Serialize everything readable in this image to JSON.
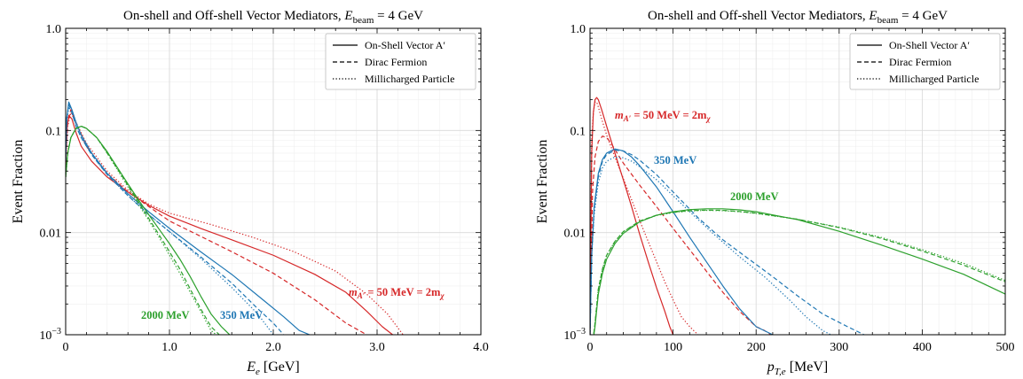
{
  "colors": {
    "red": "#d62728",
    "blue": "#1f77b4",
    "green": "#2ca02c"
  },
  "chart_data": [
    {
      "type": "line",
      "title": "On-shell and Off-shell Vector Mediators, E_beam = 4 GeV",
      "title_main": "On-shell and Off-shell Vector Mediators,",
      "title_eq": "= 4 GeV",
      "xlabel_sym": "E",
      "xlabel_sub": "e",
      "xlabel_unit": "[GeV]",
      "ylabel": "Event Fraction",
      "xlim": [
        0,
        4.0
      ],
      "ylim": [
        0.001,
        1.0
      ],
      "yscale": "log",
      "grid": true,
      "legend_position": "top-right",
      "xticks": [
        "0",
        "1.0",
        "2.0",
        "3.0",
        "4.0"
      ],
      "yticks": [
        "1.0",
        "0.1",
        "0.01",
        "10"
      ],
      "legend": [
        {
          "text": "On-Shell Vector A′",
          "dash": "solid"
        },
        {
          "text": "Dirac Fermion",
          "dash": "dashed"
        },
        {
          "text": "Millicharged Particle",
          "dash": "dotted"
        }
      ],
      "annotations": [
        {
          "text": "m",
          "sub": "A′",
          "rest": " = 50 MeV = 2m",
          "sub2": "χ",
          "color": "red"
        },
        {
          "text": "350 MeV",
          "color": "blue"
        },
        {
          "text": "2000 MeV",
          "color": "green"
        }
      ],
      "series": [
        {
          "color": "red",
          "dash": "solid",
          "x": [
            0.0,
            0.01,
            0.03,
            0.06,
            0.1,
            0.15,
            0.25,
            0.4,
            0.6,
            0.8,
            1.0,
            1.3,
            1.6,
            2.0,
            2.4,
            2.7,
            2.9,
            3.05,
            3.15
          ],
          "y": [
            0.04,
            0.1,
            0.14,
            0.13,
            0.095,
            0.07,
            0.05,
            0.035,
            0.025,
            0.0185,
            0.0145,
            0.011,
            0.0085,
            0.006,
            0.0039,
            0.0026,
            0.0017,
            0.0012,
            0.001
          ]
        },
        {
          "color": "red",
          "dash": "dashed",
          "x": [
            0.0,
            0.02,
            0.05,
            0.1,
            0.2,
            0.4,
            0.6,
            0.8,
            1.0,
            1.3,
            1.6,
            2.0,
            2.4,
            2.7,
            2.9
          ],
          "y": [
            0.05,
            0.12,
            0.16,
            0.12,
            0.07,
            0.038,
            0.025,
            0.018,
            0.013,
            0.0092,
            0.0065,
            0.004,
            0.0022,
            0.0013,
            0.001
          ]
        },
        {
          "color": "red",
          "dash": "dotted",
          "x": [
            0.0,
            0.02,
            0.05,
            0.1,
            0.2,
            0.4,
            0.6,
            0.8,
            1.0,
            1.4,
            1.8,
            2.2,
            2.6,
            2.9,
            3.1,
            3.25
          ],
          "y": [
            0.05,
            0.11,
            0.15,
            0.12,
            0.075,
            0.04,
            0.026,
            0.019,
            0.0155,
            0.012,
            0.009,
            0.0065,
            0.0042,
            0.0025,
            0.0016,
            0.001
          ]
        },
        {
          "color": "blue",
          "dash": "solid",
          "x": [
            0.0,
            0.01,
            0.03,
            0.06,
            0.1,
            0.15,
            0.25,
            0.4,
            0.6,
            0.8,
            1.0,
            1.3,
            1.6,
            1.9,
            2.1,
            2.25,
            2.35
          ],
          "y": [
            0.05,
            0.13,
            0.19,
            0.16,
            0.12,
            0.09,
            0.06,
            0.038,
            0.024,
            0.016,
            0.011,
            0.0065,
            0.0039,
            0.0022,
            0.0015,
            0.0011,
            0.001
          ]
        },
        {
          "color": "blue",
          "dash": "dashed",
          "x": [
            0.0,
            0.01,
            0.03,
            0.06,
            0.1,
            0.15,
            0.25,
            0.4,
            0.6,
            0.8,
            1.0,
            1.3,
            1.6,
            1.85,
            2.0,
            2.1
          ],
          "y": [
            0.05,
            0.13,
            0.18,
            0.15,
            0.11,
            0.085,
            0.058,
            0.037,
            0.023,
            0.015,
            0.0102,
            0.0058,
            0.0032,
            0.0018,
            0.0013,
            0.001
          ]
        },
        {
          "color": "blue",
          "dash": "dotted",
          "x": [
            0.0,
            0.01,
            0.03,
            0.06,
            0.1,
            0.15,
            0.25,
            0.4,
            0.6,
            0.8,
            1.0,
            1.3,
            1.6,
            1.85,
            2.0
          ],
          "y": [
            0.05,
            0.12,
            0.17,
            0.15,
            0.11,
            0.085,
            0.058,
            0.037,
            0.023,
            0.015,
            0.0102,
            0.0056,
            0.0029,
            0.0016,
            0.001
          ]
        },
        {
          "color": "green",
          "dash": "solid",
          "x": [
            0.0,
            0.02,
            0.05,
            0.1,
            0.15,
            0.2,
            0.3,
            0.4,
            0.5,
            0.6,
            0.7,
            0.8,
            0.9,
            1.0,
            1.1,
            1.2,
            1.3,
            1.4,
            1.5,
            1.58
          ],
          "y": [
            0.035,
            0.06,
            0.085,
            0.105,
            0.11,
            0.105,
            0.085,
            0.062,
            0.043,
            0.03,
            0.021,
            0.015,
            0.0108,
            0.0078,
            0.0055,
            0.0037,
            0.0024,
            0.0016,
            0.0012,
            0.001
          ]
        },
        {
          "color": "green",
          "dash": "dashed",
          "x": [
            0.0,
            0.02,
            0.05,
            0.1,
            0.15,
            0.2,
            0.3,
            0.4,
            0.5,
            0.6,
            0.7,
            0.8,
            0.9,
            1.0,
            1.1,
            1.2,
            1.3,
            1.4,
            1.48
          ],
          "y": [
            0.035,
            0.06,
            0.085,
            0.105,
            0.11,
            0.105,
            0.085,
            0.06,
            0.042,
            0.029,
            0.02,
            0.0138,
            0.0095,
            0.0065,
            0.0044,
            0.0028,
            0.0018,
            0.0012,
            0.001
          ]
        },
        {
          "color": "green",
          "dash": "dotted",
          "x": [
            0.0,
            0.02,
            0.05,
            0.1,
            0.15,
            0.2,
            0.3,
            0.4,
            0.5,
            0.6,
            0.7,
            0.8,
            0.9,
            1.0,
            1.1,
            1.2,
            1.3,
            1.4,
            1.45
          ],
          "y": [
            0.035,
            0.06,
            0.085,
            0.105,
            0.11,
            0.105,
            0.085,
            0.06,
            0.041,
            0.028,
            0.019,
            0.0132,
            0.009,
            0.006,
            0.004,
            0.0026,
            0.0017,
            0.0011,
            0.001
          ]
        }
      ]
    },
    {
      "type": "line",
      "title": "On-shell and Off-shell Vector Mediators, E_beam = 4 GeV",
      "title_main": "On-shell and Off-shell Vector Mediators,",
      "title_eq": "= 4 GeV",
      "xlabel_sym": "p",
      "xlabel_sub": "T,e",
      "xlabel_unit": "[MeV]",
      "ylabel": "Event Fraction",
      "xlim": [
        0,
        500
      ],
      "ylim": [
        0.001,
        1.0
      ],
      "yscale": "log",
      "grid": true,
      "legend_position": "top-right",
      "xticks": [
        "0",
        "100",
        "200",
        "300",
        "400",
        "500"
      ],
      "yticks": [
        "1.0",
        "0.1",
        "0.01",
        "10"
      ],
      "legend": [
        {
          "text": "On-Shell Vector A′",
          "dash": "solid"
        },
        {
          "text": "Dirac Fermion",
          "dash": "dashed"
        },
        {
          "text": "Millicharged Particle",
          "dash": "dotted"
        }
      ],
      "annotations": [
        {
          "text": "m",
          "sub": "A′",
          "rest": " = 50 MeV = 2m",
          "sub2": "χ",
          "color": "red"
        },
        {
          "text": "350 MeV",
          "color": "blue"
        },
        {
          "text": "2000 MeV",
          "color": "green"
        }
      ],
      "series": [
        {
          "color": "red",
          "dash": "solid",
          "x": [
            0,
            2,
            4,
            6,
            8,
            10,
            14,
            20,
            30,
            40,
            50,
            60,
            70,
            80,
            90,
            96,
            100
          ],
          "y": [
            0.001,
            0.06,
            0.15,
            0.2,
            0.21,
            0.2,
            0.16,
            0.11,
            0.06,
            0.033,
            0.018,
            0.0095,
            0.0052,
            0.0029,
            0.0017,
            0.0012,
            0.001
          ]
        },
        {
          "color": "red",
          "dash": "dashed",
          "x": [
            0,
            3,
            6,
            10,
            15,
            20,
            25,
            30,
            40,
            60,
            80,
            100,
            120,
            140,
            160,
            180,
            200,
            210,
            218
          ],
          "y": [
            0.001,
            0.025,
            0.055,
            0.078,
            0.088,
            0.085,
            0.076,
            0.065,
            0.048,
            0.029,
            0.018,
            0.011,
            0.0068,
            0.0042,
            0.0026,
            0.0017,
            0.0012,
            0.0011,
            0.001
          ]
        },
        {
          "color": "red",
          "dash": "dotted",
          "x": [
            0,
            2,
            4,
            6,
            8,
            10,
            14,
            20,
            30,
            40,
            50,
            60,
            70,
            80,
            90,
            100,
            110,
            120,
            130
          ],
          "y": [
            0.001,
            0.08,
            0.15,
            0.19,
            0.19,
            0.17,
            0.13,
            0.09,
            0.055,
            0.034,
            0.021,
            0.013,
            0.0082,
            0.0052,
            0.0033,
            0.0022,
            0.0015,
            0.0012,
            0.001
          ]
        },
        {
          "color": "blue",
          "dash": "solid",
          "x": [
            0,
            2,
            5,
            10,
            15,
            20,
            30,
            40,
            50,
            60,
            80,
            100,
            120,
            140,
            160,
            180,
            200,
            220
          ],
          "y": [
            0.001,
            0.006,
            0.018,
            0.038,
            0.052,
            0.06,
            0.066,
            0.063,
            0.055,
            0.045,
            0.028,
            0.016,
            0.009,
            0.0052,
            0.003,
            0.0018,
            0.0012,
            0.001
          ]
        },
        {
          "color": "blue",
          "dash": "dashed",
          "x": [
            0,
            2,
            5,
            10,
            15,
            20,
            30,
            40,
            50,
            60,
            80,
            100,
            130,
            160,
            190,
            220,
            250,
            280,
            310,
            330
          ],
          "y": [
            0.001,
            0.006,
            0.017,
            0.035,
            0.05,
            0.058,
            0.064,
            0.063,
            0.058,
            0.051,
            0.037,
            0.025,
            0.014,
            0.0085,
            0.0056,
            0.0037,
            0.0024,
            0.0016,
            0.0012,
            0.001
          ]
        },
        {
          "color": "blue",
          "dash": "dotted",
          "x": [
            0,
            2,
            5,
            10,
            15,
            20,
            30,
            40,
            50,
            60,
            80,
            100,
            120,
            150,
            180,
            210,
            240,
            260,
            280,
            290
          ],
          "y": [
            0.001,
            0.006,
            0.015,
            0.031,
            0.043,
            0.05,
            0.055,
            0.054,
            0.05,
            0.044,
            0.033,
            0.023,
            0.016,
            0.0095,
            0.0058,
            0.0037,
            0.0022,
            0.0015,
            0.0011,
            0.001
          ]
        },
        {
          "color": "green",
          "dash": "solid",
          "x": [
            0,
            3,
            6,
            10,
            15,
            20,
            30,
            40,
            60,
            80,
            100,
            120,
            140,
            160,
            180,
            200,
            250,
            300,
            350,
            400,
            450,
            500
          ],
          "y": [
            0.001,
            0.0008,
            0.0012,
            0.0025,
            0.004,
            0.0055,
            0.0078,
            0.0098,
            0.0128,
            0.0148,
            0.016,
            0.0168,
            0.0171,
            0.0171,
            0.0167,
            0.016,
            0.0134,
            0.0103,
            0.0076,
            0.0055,
            0.0039,
            0.0025
          ]
        },
        {
          "color": "green",
          "dash": "dashed",
          "x": [
            0,
            3,
            6,
            10,
            15,
            20,
            30,
            40,
            60,
            80,
            100,
            120,
            140,
            160,
            180,
            200,
            250,
            300,
            350,
            400,
            450,
            500
          ],
          "y": [
            0.001,
            0.0008,
            0.0013,
            0.0028,
            0.0044,
            0.006,
            0.0082,
            0.0102,
            0.013,
            0.0148,
            0.0158,
            0.0164,
            0.0166,
            0.0165,
            0.0161,
            0.0155,
            0.0135,
            0.0112,
            0.0088,
            0.0066,
            0.0048,
            0.0033
          ]
        },
        {
          "color": "green",
          "dash": "dotted",
          "x": [
            0,
            3,
            6,
            10,
            15,
            20,
            30,
            40,
            60,
            80,
            100,
            120,
            140,
            160,
            180,
            200,
            250,
            300,
            350,
            400,
            450,
            500
          ],
          "y": [
            0.001,
            0.0008,
            0.0013,
            0.0028,
            0.0044,
            0.006,
            0.0082,
            0.0102,
            0.0129,
            0.0147,
            0.0157,
            0.0163,
            0.0165,
            0.0164,
            0.016,
            0.0154,
            0.0135,
            0.0113,
            0.009,
            0.0068,
            0.005,
            0.0034
          ]
        }
      ]
    }
  ]
}
